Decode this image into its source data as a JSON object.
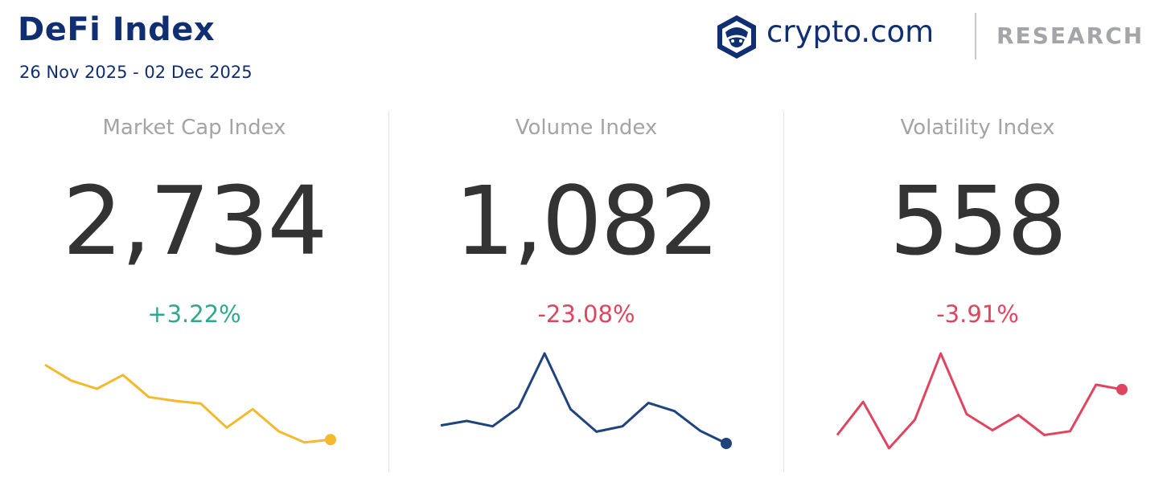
{
  "header": {
    "title": "DeFi Index",
    "date_range": "26 Nov 2025 - 02 Dec 2025"
  },
  "brand": {
    "name": "crypto.com",
    "division": "RESEARCH",
    "logo_icon": "crypto-com-lion-shield-icon",
    "color": "#0f2f72"
  },
  "colors": {
    "positive": "#2fa98c",
    "negative": "#e0455f",
    "market_cap_line": "#f4b92d",
    "volume_line": "#1f437c",
    "volatility_line": "#e0455f"
  },
  "chart_data": [
    {
      "type": "line",
      "title": "Market Cap Index",
      "value": "2,734",
      "change": "+3.22%",
      "change_direction": "up",
      "color": "#f4b92d",
      "series": [
        {
          "values": [
            86,
            69,
            60,
            75,
            51,
            47,
            44,
            18,
            38,
            14,
            2,
            5
          ]
        }
      ],
      "ylim": [
        0,
        100
      ],
      "grid": false,
      "end_marker": true
    },
    {
      "type": "line",
      "title": "Volume Index",
      "value": "1,082",
      "change": "-23.08%",
      "change_direction": "down",
      "color": "#1f437c",
      "series": [
        {
          "values": [
            20,
            25,
            19,
            40,
            100,
            38,
            13,
            19,
            45,
            36,
            14,
            0
          ]
        }
      ],
      "ylim": [
        0,
        100
      ],
      "grid": false,
      "end_marker": true
    },
    {
      "type": "line",
      "title": "Volatility Index",
      "value": "558",
      "change": "-3.91%",
      "change_direction": "down",
      "color": "#e0455f",
      "series": [
        {
          "values": [
            14,
            49,
            0,
            30,
            100,
            36,
            19,
            35,
            14,
            18,
            67,
            62
          ]
        }
      ],
      "ylim": [
        0,
        100
      ],
      "grid": false,
      "end_marker": true
    }
  ]
}
